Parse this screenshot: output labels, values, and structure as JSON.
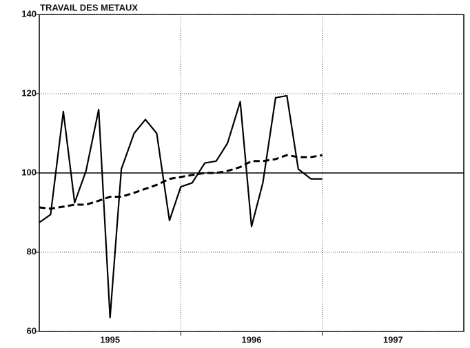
{
  "chart_data": {
    "type": "line",
    "title": "TRAVAIL DES METAUX",
    "x": [
      1995.0,
      1995.08,
      1995.17,
      1995.25,
      1995.33,
      1995.42,
      1995.5,
      1995.58,
      1995.67,
      1995.75,
      1995.83,
      1995.92,
      1996.0,
      1996.08,
      1996.17,
      1996.25,
      1996.33,
      1996.42,
      1996.5,
      1996.58,
      1996.67,
      1996.75,
      1996.83,
      1996.92,
      1997.0
    ],
    "series": [
      {
        "color": "#000000",
        "dash": "solid",
        "values": [
          87.5,
          89.5,
          115.5,
          92.5,
          100.5,
          116,
          63.5,
          101,
          110,
          113.5,
          110,
          88,
          96.5,
          97.5,
          102.5,
          103,
          107.5,
          118,
          86.5,
          97.5,
          119,
          119.5,
          101,
          98.5,
          98.5
        ]
      },
      {
        "color": "#000000",
        "dash": "dashed",
        "values": [
          91.3,
          91,
          91.5,
          92,
          92,
          93,
          94,
          94,
          95,
          96,
          97,
          98.5,
          99,
          99.5,
          100,
          100,
          100.5,
          101.5,
          103,
          103,
          103.5,
          104.5,
          104,
          104,
          104.5
        ]
      }
    ],
    "xlim": [
      1995,
      1998
    ],
    "xticks": [
      {
        "value": 1995.5,
        "label": "1995"
      },
      {
        "value": 1996.5,
        "label": "1996"
      },
      {
        "value": 1997.5,
        "label": "1997"
      }
    ],
    "xgrid": [
      1996,
      1997
    ],
    "ylim": [
      60,
      140
    ],
    "yticks": [
      60,
      80,
      100,
      120,
      140
    ],
    "reference_line": 100,
    "grid": true
  }
}
